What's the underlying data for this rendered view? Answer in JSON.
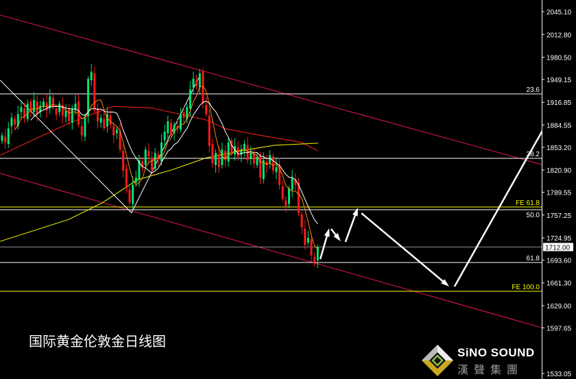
{
  "caption": "国际黄金伦敦金日线图",
  "logo": {
    "en": "SiNO SOUND",
    "cn": "漢聲集團"
  },
  "colors": {
    "bull": "#00e676",
    "bear": "#ff1a1a",
    "ma_fast": "#ff8c00",
    "ma_mid": "#ffffff",
    "ma_slow": "#ff2020",
    "ma_long": "#ffff00",
    "channel": "#e8194a",
    "fib": "#ffffff",
    "fe": "#ffff00",
    "price_line": "#8a8f99",
    "axis_text": "#ffffff"
  },
  "chart_data": {
    "type": "candlestick",
    "title": "",
    "ylim": [
      1533.05,
      2045.1
    ],
    "yticks": [
      "2045.10",
      "2012.80",
      "1980.50",
      "1949.15",
      "1916.85",
      "1884.55",
      "1853.20",
      "1820.90",
      "1789.55",
      "1757.25",
      "1724.95",
      "1693.60",
      "1661.30",
      "1629.00",
      "1597.65",
      "1533.05"
    ],
    "current_price": "1712.00",
    "close": [
      1870,
      1860,
      1880,
      1895,
      1885,
      1900,
      1910,
      1895,
      1915,
      1905,
      1920,
      1900,
      1912,
      1918,
      1905,
      1925,
      1910,
      1900,
      1915,
      1898,
      1905,
      1890,
      1908,
      1915,
      1885,
      1870,
      1895,
      1950,
      1960,
      1905,
      1890,
      1895,
      1880,
      1900,
      1885,
      1870,
      1878,
      1850,
      1820,
      1795,
      1775,
      1800,
      1810,
      1835,
      1825,
      1850,
      1840,
      1820,
      1845,
      1835,
      1860,
      1875,
      1890,
      1870,
      1885,
      1880,
      1900,
      1895,
      1910,
      1935,
      1950,
      1940,
      1958,
      1915,
      1900,
      1855,
      1830,
      1845,
      1825,
      1850,
      1835,
      1860,
      1845,
      1855,
      1840,
      1850,
      1858,
      1835,
      1845,
      1830,
      1840,
      1810,
      1835,
      1828,
      1842,
      1820,
      1825,
      1800,
      1780,
      1770,
      1795,
      1810,
      1800,
      1760,
      1740,
      1715,
      1725,
      1700,
      1690,
      1712
    ],
    "moving_averages": [
      {
        "period": 5,
        "color_key": "ma_fast"
      },
      {
        "period": 10,
        "color_key": "ma_mid"
      }
    ],
    "long_ma_red": [
      [
        -0.6,
        1842
      ],
      [
        20.9,
        1887
      ],
      [
        34.8,
        1911
      ],
      [
        46.7,
        1909
      ],
      [
        63.9,
        1892
      ],
      [
        70.3,
        1879
      ],
      [
        81.1,
        1870
      ],
      [
        94,
        1860
      ],
      [
        99.1,
        1848
      ]
    ],
    "long_ma_yellow": [
      [
        -0.6,
        1720
      ],
      [
        20.9,
        1751
      ],
      [
        31.6,
        1775
      ],
      [
        42.4,
        1807
      ],
      [
        53.1,
        1821
      ],
      [
        63.9,
        1838
      ],
      [
        74.6,
        1848
      ],
      [
        85.4,
        1856
      ],
      [
        99.1,
        1859
      ]
    ],
    "horizontal_levels": [
      {
        "label": "23.6",
        "price": 1928.7,
        "kind": "fib"
      },
      {
        "label": "38.2",
        "price": 1837.5,
        "kind": "fib"
      },
      {
        "label": "FE 61.8",
        "price": 1768.7,
        "kind": "fe"
      },
      {
        "label": "50.0",
        "price": 1764.8,
        "kind": "fib"
      },
      {
        "label": "61.8",
        "price": 1690.1,
        "kind": "fib"
      },
      {
        "label": "FE 100.0",
        "price": 1649.4,
        "kind": "fe"
      }
    ],
    "channel_lines": [
      [
        [
          -0.6,
          2040.3
        ],
        [
          169.2,
          1828.8
        ]
      ],
      [
        [
          -0.6,
          1816.2
        ],
        [
          169.2,
          1597.9
        ]
      ]
    ],
    "zigzag": [
      [
        -0.6,
        1948.1
      ],
      [
        40.6,
        1760.4
      ],
      [
        62.2,
        1956.1
      ]
    ],
    "forecast_arrows": [
      [
        [
          99.8,
          1694.9
        ],
        [
          102.6,
          1738.5
        ]
      ],
      [
        [
          103.2,
          1737.6
        ],
        [
          106.2,
          1720.2
        ]
      ],
      [
        [
          107.7,
          1719.2
        ],
        [
          111.6,
          1767.7
        ]
      ],
      [
        [
          112.7,
          1759.9
        ],
        [
          140.2,
          1656.2
        ]
      ],
      [
        [
          141.9,
          1656.2
        ],
        [
          178.9,
          1952.0
        ]
      ]
    ]
  }
}
